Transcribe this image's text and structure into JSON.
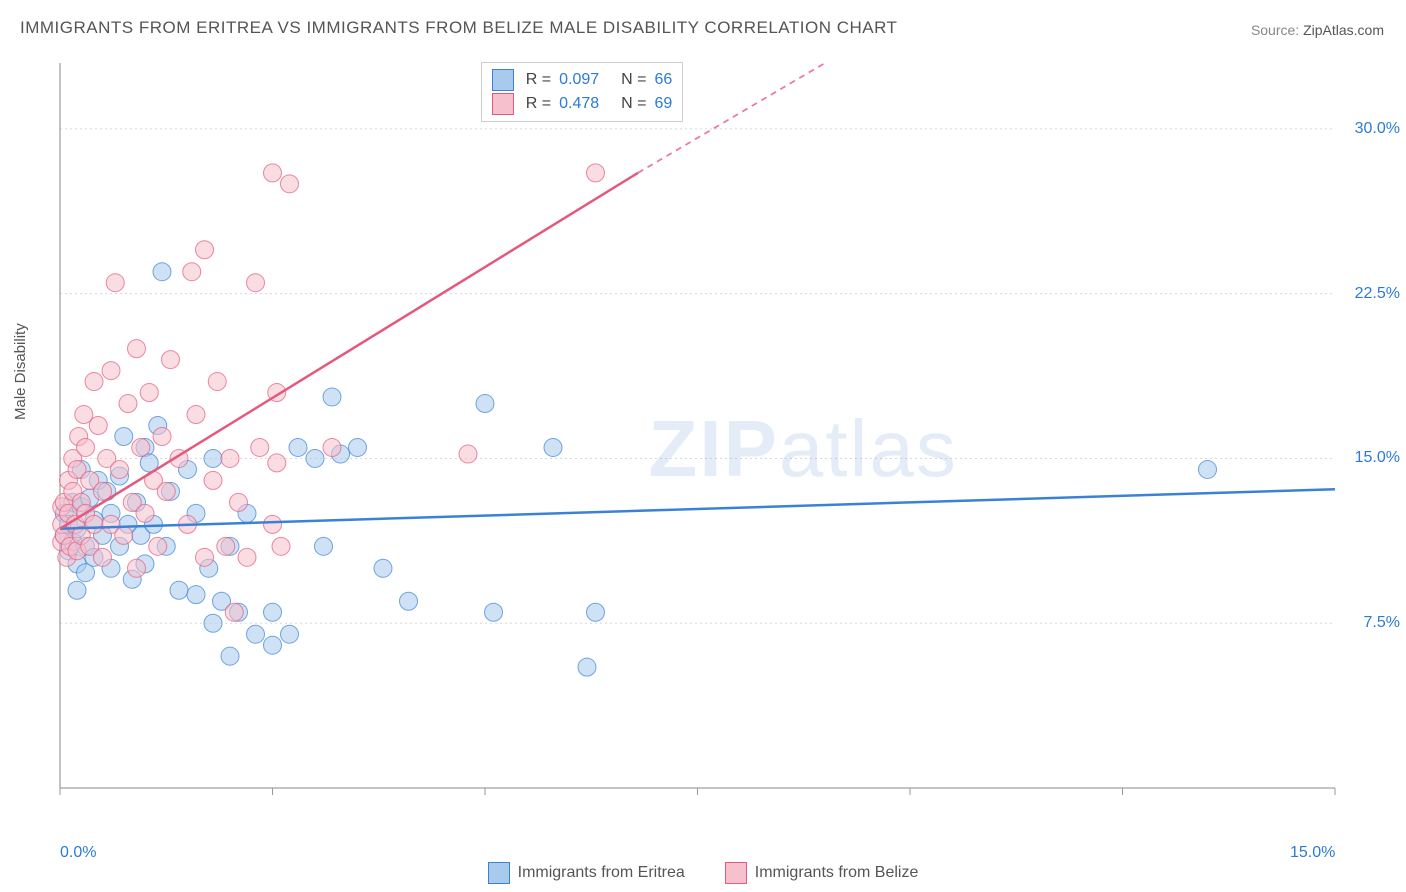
{
  "title": "IMMIGRANTS FROM ERITREA VS IMMIGRANTS FROM BELIZE MALE DISABILITY CORRELATION CHART",
  "source_label": "Source:",
  "source_value": "ZipAtlas.com",
  "ylabel": "Male Disability",
  "watermark_bold": "ZIP",
  "watermark_light": "atlas",
  "chart": {
    "type": "scatter",
    "background_color": "#ffffff",
    "grid_color": "#d8d8d8",
    "axis_color": "#888888",
    "tick_color": "#999999",
    "tick_label_color": "#2b7bd6",
    "xlim": [
      0,
      15
    ],
    "ylim": [
      0,
      33
    ],
    "xticks": [
      0.0,
      15.0
    ],
    "xtick_labels": [
      "0.0%",
      "15.0%"
    ],
    "xtick_minor": [
      2.5,
      5.0,
      7.5,
      10.0,
      12.5
    ],
    "yticks": [
      7.5,
      15.0,
      22.5,
      30.0
    ],
    "ytick_labels": [
      "7.5%",
      "15.0%",
      "22.5%",
      "30.0%"
    ],
    "marker_radius": 9,
    "marker_opacity": 0.55,
    "line_width": 2.5
  },
  "legend_top": {
    "rows": [
      {
        "swatch_fill": "#a8caed",
        "swatch_border": "#3b82d6",
        "r": "0.097",
        "n": "66"
      },
      {
        "swatch_fill": "#f6c0cc",
        "swatch_border": "#e35a7e",
        "r": "0.478",
        "n": "69"
      }
    ],
    "r_label": "R =",
    "n_label": "N ="
  },
  "legend_bottom": {
    "items": [
      {
        "swatch_fill": "#a8caed",
        "swatch_border": "#3b82d6",
        "label": "Immigrants from Eritrea"
      },
      {
        "swatch_fill": "#f6c0cc",
        "swatch_border": "#e35a7e",
        "label": "Immigrants from Belize"
      }
    ]
  },
  "series": [
    {
      "name": "Immigrants from Eritrea",
      "fill": "#a8caed",
      "stroke": "#3b82d6",
      "trend": {
        "x1": 0,
        "y1": 11.8,
        "x2": 15,
        "y2": 13.6,
        "dashed": false
      },
      "points": [
        [
          0.05,
          11.5
        ],
        [
          0.05,
          12.5
        ],
        [
          0.1,
          10.8
        ],
        [
          0.1,
          12.0
        ],
        [
          0.15,
          11.2
        ],
        [
          0.15,
          13.0
        ],
        [
          0.2,
          10.2
        ],
        [
          0.2,
          11.8
        ],
        [
          0.25,
          12.8
        ],
        [
          0.25,
          14.5
        ],
        [
          0.3,
          9.8
        ],
        [
          0.3,
          11.0
        ],
        [
          0.35,
          13.2
        ],
        [
          0.4,
          10.5
        ],
        [
          0.4,
          12.2
        ],
        [
          0.45,
          14.0
        ],
        [
          0.5,
          11.5
        ],
        [
          0.55,
          13.5
        ],
        [
          0.6,
          10.0
        ],
        [
          0.6,
          12.5
        ],
        [
          0.7,
          14.2
        ],
        [
          0.7,
          11.0
        ],
        [
          0.75,
          16.0
        ],
        [
          0.8,
          12.0
        ],
        [
          0.85,
          9.5
        ],
        [
          0.9,
          13.0
        ],
        [
          0.95,
          11.5
        ],
        [
          1.0,
          15.5
        ],
        [
          1.0,
          10.2
        ],
        [
          1.05,
          14.8
        ],
        [
          1.1,
          12.0
        ],
        [
          1.15,
          16.5
        ],
        [
          1.2,
          23.5
        ],
        [
          1.25,
          11.0
        ],
        [
          1.3,
          13.5
        ],
        [
          1.4,
          9.0
        ],
        [
          1.5,
          14.5
        ],
        [
          1.6,
          8.8
        ],
        [
          1.6,
          12.5
        ],
        [
          1.75,
          10.0
        ],
        [
          1.8,
          15.0
        ],
        [
          1.8,
          7.5
        ],
        [
          1.9,
          8.5
        ],
        [
          2.0,
          11.0
        ],
        [
          2.0,
          6.0
        ],
        [
          2.1,
          8.0
        ],
        [
          2.2,
          12.5
        ],
        [
          2.3,
          7.0
        ],
        [
          2.5,
          8.0
        ],
        [
          2.5,
          6.5
        ],
        [
          2.7,
          7.0
        ],
        [
          2.8,
          15.5
        ],
        [
          3.0,
          15.0
        ],
        [
          3.1,
          11.0
        ],
        [
          3.2,
          17.8
        ],
        [
          3.3,
          15.2
        ],
        [
          3.5,
          15.5
        ],
        [
          3.8,
          10.0
        ],
        [
          4.1,
          8.5
        ],
        [
          5.0,
          17.5
        ],
        [
          5.1,
          8.0
        ],
        [
          5.8,
          15.5
        ],
        [
          6.2,
          5.5
        ],
        [
          6.3,
          8.0
        ],
        [
          13.5,
          14.5
        ],
        [
          0.2,
          9.0
        ]
      ]
    },
    {
      "name": "Immigrants from Belize",
      "fill": "#f6c0cc",
      "stroke": "#e35a7e",
      "trend": {
        "x1": 0,
        "y1": 11.8,
        "x2": 6.8,
        "y2": 28.0,
        "dashed_from_x": 6.8,
        "dashed_to": [
          9.0,
          33.0
        ]
      },
      "points": [
        [
          0.02,
          11.2
        ],
        [
          0.02,
          12.0
        ],
        [
          0.02,
          12.8
        ],
        [
          0.05,
          11.5
        ],
        [
          0.05,
          13.0
        ],
        [
          0.08,
          10.5
        ],
        [
          0.1,
          12.5
        ],
        [
          0.1,
          14.0
        ],
        [
          0.12,
          11.0
        ],
        [
          0.15,
          13.5
        ],
        [
          0.15,
          15.0
        ],
        [
          0.18,
          12.0
        ],
        [
          0.2,
          10.8
        ],
        [
          0.2,
          14.5
        ],
        [
          0.22,
          16.0
        ],
        [
          0.25,
          11.5
        ],
        [
          0.25,
          13.0
        ],
        [
          0.28,
          17.0
        ],
        [
          0.3,
          12.5
        ],
        [
          0.3,
          15.5
        ],
        [
          0.35,
          11.0
        ],
        [
          0.35,
          14.0
        ],
        [
          0.4,
          18.5
        ],
        [
          0.4,
          12.0
        ],
        [
          0.45,
          16.5
        ],
        [
          0.5,
          13.5
        ],
        [
          0.5,
          10.5
        ],
        [
          0.55,
          15.0
        ],
        [
          0.6,
          19.0
        ],
        [
          0.6,
          12.0
        ],
        [
          0.65,
          23.0
        ],
        [
          0.7,
          14.5
        ],
        [
          0.75,
          11.5
        ],
        [
          0.8,
          17.5
        ],
        [
          0.85,
          13.0
        ],
        [
          0.9,
          20.0
        ],
        [
          0.9,
          10.0
        ],
        [
          0.95,
          15.5
        ],
        [
          1.0,
          12.5
        ],
        [
          1.05,
          18.0
        ],
        [
          1.1,
          14.0
        ],
        [
          1.15,
          11.0
        ],
        [
          1.2,
          16.0
        ],
        [
          1.25,
          13.5
        ],
        [
          1.3,
          19.5
        ],
        [
          1.4,
          15.0
        ],
        [
          1.5,
          12.0
        ],
        [
          1.55,
          23.5
        ],
        [
          1.6,
          17.0
        ],
        [
          1.7,
          10.5
        ],
        [
          1.7,
          24.5
        ],
        [
          1.8,
          14.0
        ],
        [
          1.85,
          18.5
        ],
        [
          1.95,
          11.0
        ],
        [
          2.0,
          15.0
        ],
        [
          2.05,
          8.0
        ],
        [
          2.1,
          13.0
        ],
        [
          2.2,
          10.5
        ],
        [
          2.3,
          23.0
        ],
        [
          2.35,
          15.5
        ],
        [
          2.5,
          12.0
        ],
        [
          2.5,
          28.0
        ],
        [
          2.55,
          18.0
        ],
        [
          2.55,
          14.8
        ],
        [
          2.6,
          11.0
        ],
        [
          2.7,
          27.5
        ],
        [
          3.2,
          15.5
        ],
        [
          4.8,
          15.2
        ],
        [
          6.3,
          28.0
        ]
      ]
    }
  ]
}
